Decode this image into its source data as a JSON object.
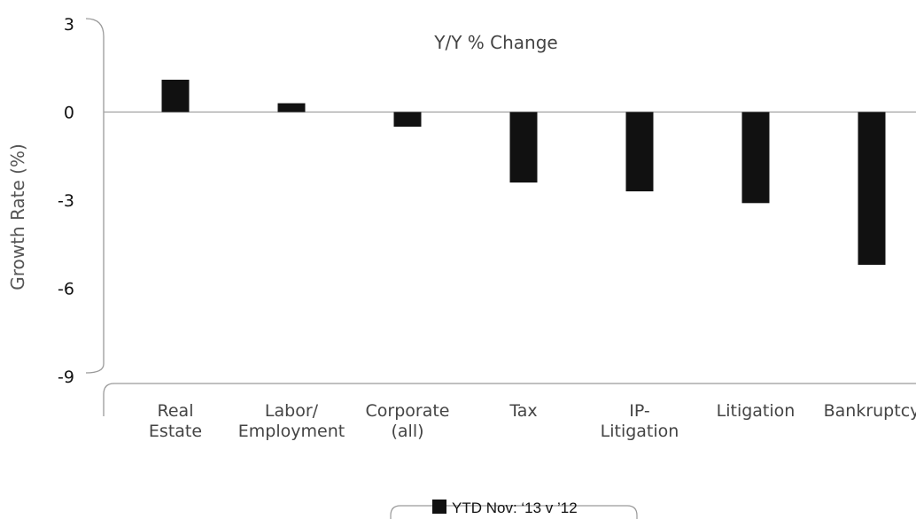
{
  "chart_data": {
    "type": "bar",
    "title": "Y/Y % Change",
    "xlabel": "",
    "ylabel": "Growth Rate (%)",
    "ylim": [
      -9,
      3
    ],
    "yticks": [
      3,
      0,
      -3,
      -6,
      -9
    ],
    "categories": [
      [
        "Real",
        "Estate"
      ],
      [
        "Labor/",
        "Employment"
      ],
      [
        "Corporate",
        "(all)"
      ],
      [
        "Tax"
      ],
      [
        "IP-",
        "Litigation"
      ],
      [
        "Litigation"
      ],
      [
        "Bankruptcy"
      ]
    ],
    "series": [
      {
        "name": "YTD Nov: ‘13 v ’12",
        "values": [
          1.1,
          0.3,
          -0.5,
          -2.4,
          -2.7,
          -3.1,
          -5.2
        ]
      }
    ],
    "colors": {
      "bar": "#111111",
      "axis": "#9a9a9a",
      "zero_line": "#a0a0a0"
    },
    "grid": false,
    "legend_position": "bottom"
  }
}
